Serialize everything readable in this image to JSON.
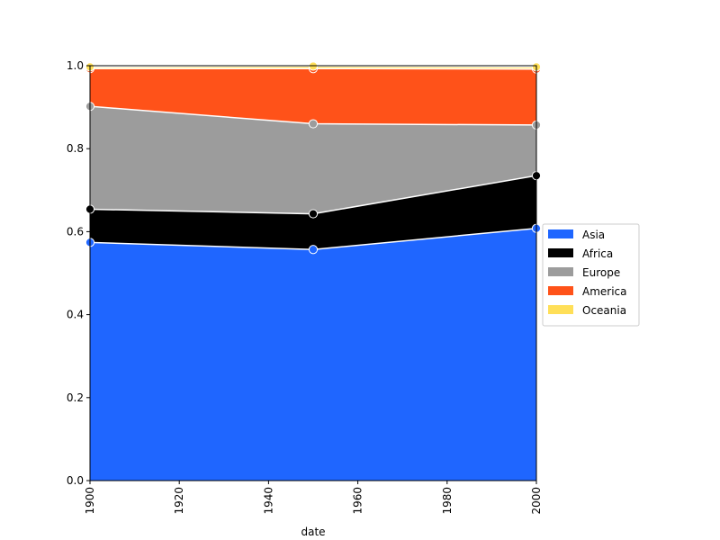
{
  "chart_data": {
    "type": "area",
    "stacked": true,
    "x": [
      1900,
      1950,
      2000
    ],
    "series": [
      {
        "name": "Asia",
        "color": "#1f66ff",
        "values": [
          0.574,
          0.557,
          0.608
        ]
      },
      {
        "name": "Africa",
        "color": "#000000",
        "values": [
          0.08,
          0.086,
          0.127
        ]
      },
      {
        "name": "Europe",
        "color": "#9c9c9c",
        "values": [
          0.248,
          0.217,
          0.122
        ]
      },
      {
        "name": "America",
        "color": "#ff5219",
        "values": [
          0.091,
          0.133,
          0.135
        ]
      },
      {
        "name": "Oceania",
        "color": "#ffdf58",
        "values": [
          0.004,
          0.006,
          0.005
        ]
      }
    ],
    "xlabel": "date",
    "ylabel": "",
    "xlim": [
      1900,
      2000
    ],
    "ylim": [
      0,
      1.0
    ],
    "x_ticks": [
      "1900",
      "1920",
      "1940",
      "1960",
      "1980",
      "2000"
    ],
    "y_ticks": [
      "0.0",
      "0.2",
      "0.4",
      "0.6",
      "0.8",
      "1.0"
    ],
    "x_tick_rotation": "vertical",
    "grid": false,
    "markers": true,
    "legend_position": "center-right-outside"
  }
}
